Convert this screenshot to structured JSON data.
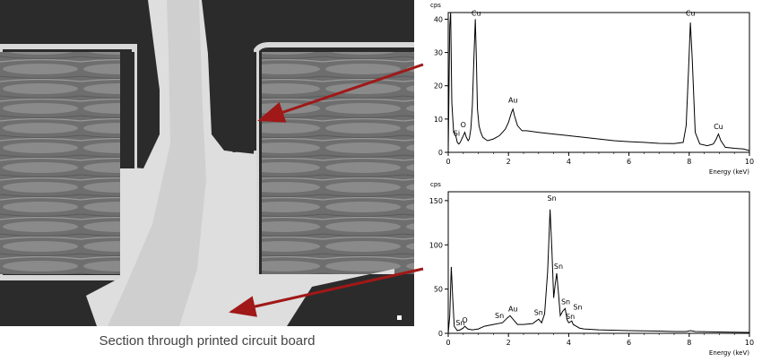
{
  "caption": "Section through printed circuit board",
  "colors": {
    "arrow": "#a01818",
    "trace": "#000000",
    "copper": "#dcdcdc",
    "dark": "#2a2a2a"
  },
  "chart_data": [
    {
      "type": "line",
      "title": "",
      "ylabel": "cps",
      "xlabel": "Energy (keV)",
      "xlim": [
        0,
        10
      ],
      "ylim": [
        0,
        42
      ],
      "xticks": [
        0,
        2,
        4,
        6,
        8,
        10
      ],
      "yticks": [
        0,
        10,
        20,
        30,
        40
      ],
      "x": [
        0,
        0.05,
        0.08,
        0.12,
        0.18,
        0.25,
        0.3,
        0.35,
        0.4,
        0.45,
        0.5,
        0.55,
        0.6,
        0.66,
        0.7,
        0.75,
        0.8,
        0.85,
        0.9,
        0.93,
        0.97,
        1.02,
        1.08,
        1.15,
        1.3,
        1.5,
        1.7,
        1.9,
        2.0,
        2.1,
        2.15,
        2.2,
        2.3,
        2.45,
        2.6,
        3.0,
        3.5,
        4.0,
        4.5,
        5.0,
        5.5,
        6.0,
        6.5,
        7.0,
        7.5,
        7.8,
        7.9,
        7.98,
        8.04,
        8.1,
        8.2,
        8.35,
        8.6,
        8.8,
        8.9,
        8.97,
        9.05,
        9.2,
        9.5,
        9.8,
        10.0
      ],
      "y": [
        0,
        38,
        44,
        15,
        6,
        5,
        3,
        2.5,
        3,
        4,
        5,
        6,
        4.5,
        3.5,
        4,
        7,
        14,
        28,
        40,
        30,
        13,
        8,
        6,
        4.5,
        3.5,
        4,
        5,
        7,
        9,
        12,
        13,
        11,
        8,
        6.5,
        6.5,
        6,
        5.5,
        5,
        4.5,
        4,
        3.5,
        3.2,
        3,
        2.7,
        2.6,
        3,
        8,
        25,
        39,
        28,
        6,
        2.5,
        2,
        2.5,
        4,
        5.5,
        3.5,
        1.5,
        1.2,
        1,
        0.5
      ],
      "annotations": [
        {
          "text": "Cu",
          "x": 0.93,
          "y": 41
        },
        {
          "text": "O",
          "x": 0.5,
          "y": 7.5
        },
        {
          "text": "Si",
          "x": 0.28,
          "y": 5
        },
        {
          "text": "Au",
          "x": 2.15,
          "y": 15
        },
        {
          "text": "Cu",
          "x": 8.04,
          "y": 41
        },
        {
          "text": "Cu",
          "x": 8.97,
          "y": 7
        }
      ]
    },
    {
      "type": "line",
      "title": "",
      "ylabel": "cps",
      "xlabel": "Energy (keV)",
      "xlim": [
        0,
        10
      ],
      "ylim": [
        0,
        160
      ],
      "xticks": [
        0,
        2,
        4,
        6,
        8,
        10
      ],
      "yticks": [
        0,
        50,
        100,
        150
      ],
      "x": [
        0,
        0.05,
        0.1,
        0.15,
        0.2,
        0.3,
        0.4,
        0.5,
        0.55,
        0.65,
        0.8,
        1.0,
        1.2,
        1.5,
        1.8,
        1.95,
        2.05,
        2.15,
        2.3,
        2.5,
        2.8,
        3.0,
        3.1,
        3.2,
        3.3,
        3.38,
        3.44,
        3.5,
        3.55,
        3.6,
        3.66,
        3.72,
        3.8,
        3.88,
        3.95,
        4.0,
        4.1,
        4.15,
        4.25,
        4.35,
        4.5,
        5.0,
        6.0,
        7.0,
        7.5,
        7.9,
        8.05,
        8.2,
        9.0,
        10.0
      ],
      "y": [
        0,
        20,
        75,
        40,
        8,
        3,
        4,
        6,
        8,
        5,
        4,
        5,
        8,
        10,
        12,
        17,
        20,
        16,
        10,
        10,
        11,
        16,
        12,
        22,
        70,
        140,
        95,
        40,
        55,
        68,
        45,
        20,
        25,
        28,
        15,
        12,
        14,
        10,
        8,
        6,
        5,
        4,
        3,
        2.5,
        2,
        2,
        3,
        2,
        1.5,
        1
      ],
      "annotations": [
        {
          "text": "Sn",
          "x": 3.44,
          "y": 150
        },
        {
          "text": "Sn",
          "x": 3.66,
          "y": 73
        },
        {
          "text": "Sn",
          "x": 3.9,
          "y": 33
        },
        {
          "text": "Sn",
          "x": 4.3,
          "y": 27
        },
        {
          "text": "Sn",
          "x": 4.05,
          "y": 16
        },
        {
          "text": "Sn",
          "x": 3.0,
          "y": 21
        },
        {
          "text": "Au",
          "x": 2.15,
          "y": 25
        },
        {
          "text": "Sn",
          "x": 1.7,
          "y": 17
        },
        {
          "text": "O",
          "x": 0.55,
          "y": 12
        },
        {
          "text": "Sn",
          "x": 0.4,
          "y": 9
        }
      ]
    }
  ]
}
